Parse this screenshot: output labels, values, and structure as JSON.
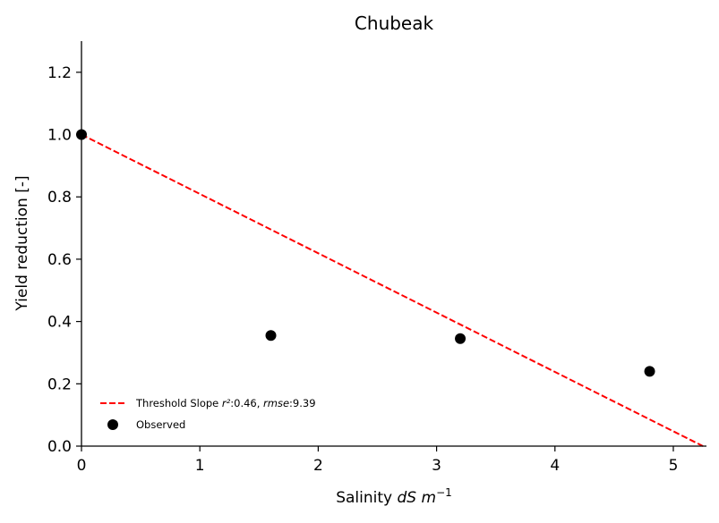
{
  "chart_data": {
    "type": "scatter",
    "title": "Chubeak",
    "xlabel": {
      "prefix": "Salinity ",
      "unit_italic": "dS m",
      "exponent": "−1"
    },
    "ylabel": "Yield reduction [-]",
    "xlim": [
      0,
      5.28
    ],
    "ylim": [
      0,
      1.3
    ],
    "x_ticks": [
      0,
      1,
      2,
      3,
      4,
      5
    ],
    "x_tick_labels": [
      "0",
      "1",
      "2",
      "3",
      "4",
      "5"
    ],
    "y_ticks": [
      0.0,
      0.2,
      0.4,
      0.6,
      0.8,
      1.0,
      1.2
    ],
    "y_tick_labels": [
      "0.0",
      "0.2",
      "0.4",
      "0.6",
      "0.8",
      "1.0",
      "1.2"
    ],
    "grid": false,
    "legend_placement": "lower-left",
    "series": [
      {
        "name": "Threshold Slope",
        "kind": "line",
        "style": "dashed",
        "color": "#ff0000",
        "x": [
          0,
          5.25
        ],
        "y": [
          1.0,
          0.0
        ],
        "legend": {
          "prefix": "Threshold Slope ",
          "r2_label": "r²",
          "r2_value": ":0.46, ",
          "rmse_label": "rmse",
          "rmse_value": ":9.39"
        }
      },
      {
        "name": "Observed",
        "kind": "scatter",
        "color": "#000000",
        "x": [
          0.0,
          1.6,
          3.2,
          4.8
        ],
        "y": [
          1.0,
          0.355,
          0.345,
          0.24
        ],
        "legend": {
          "label": "Observed"
        }
      }
    ]
  }
}
